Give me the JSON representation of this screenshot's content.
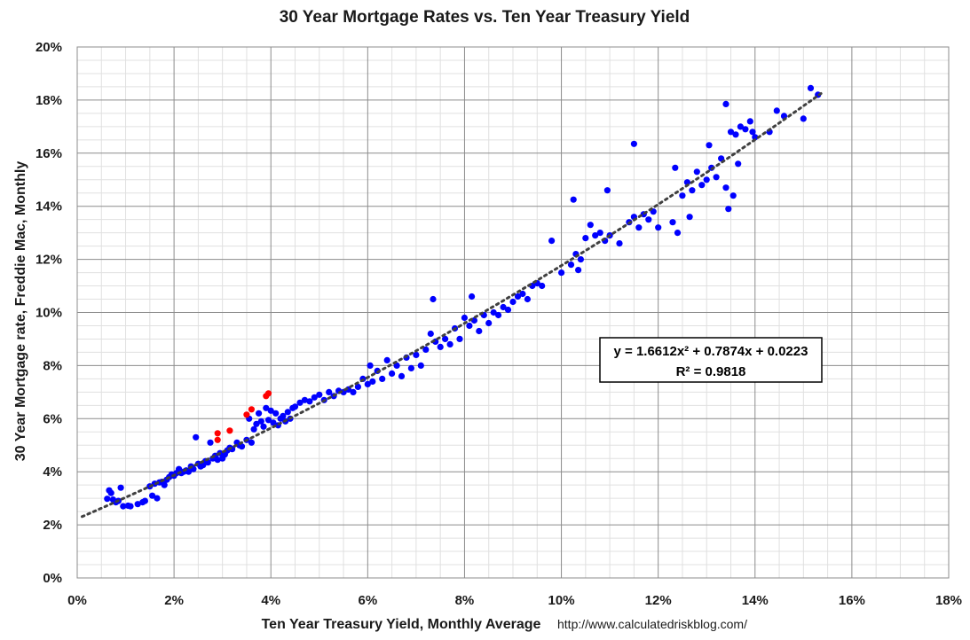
{
  "chart_data": {
    "type": "scatter",
    "title": "30 Year Mortgage Rates vs. Ten Year Treasury Yield",
    "xlabel": "Ten Year Treasury Yield, Monthly Average",
    "ylabel": "30 Year Mortgage rate, Freddie Mac, Monthly",
    "source": "http://www.calculatedriskblog.com/",
    "xlim": [
      0,
      18
    ],
    "ylim": [
      0,
      20
    ],
    "x_ticks": [
      "0%",
      "2%",
      "4%",
      "6%",
      "8%",
      "10%",
      "12%",
      "14%",
      "16%",
      "18%"
    ],
    "y_ticks": [
      "0%",
      "2%",
      "4%",
      "6%",
      "8%",
      "10%",
      "12%",
      "14%",
      "16%",
      "18%",
      "20%"
    ],
    "grid": true,
    "colors": {
      "main": "#0000ff",
      "highlight": "#ff0000",
      "trend": "#404040"
    },
    "trendline": {
      "type": "polynomial",
      "coefficients": [
        1.6612,
        0.7874,
        0.0223
      ],
      "equation": "y = 1.6612x² + 0.7874x + 0.0223",
      "r_squared": "R² = 0.9818",
      "x_range": [
        0.1,
        15.4
      ]
    },
    "series": [
      {
        "color": "#0000ff",
        "points": [
          [
            0.62,
            2.98
          ],
          [
            0.66,
            3.3
          ],
          [
            0.7,
            3.2
          ],
          [
            0.74,
            2.95
          ],
          [
            0.8,
            2.85
          ],
          [
            0.85,
            2.9
          ],
          [
            0.9,
            3.4
          ],
          [
            0.95,
            2.7
          ],
          [
            1.05,
            2.72
          ],
          [
            1.1,
            2.7
          ],
          [
            1.25,
            2.78
          ],
          [
            1.35,
            2.85
          ],
          [
            1.4,
            2.9
          ],
          [
            1.5,
            3.45
          ],
          [
            1.55,
            3.1
          ],
          [
            1.6,
            3.55
          ],
          [
            1.65,
            3.0
          ],
          [
            1.7,
            3.6
          ],
          [
            1.75,
            3.62
          ],
          [
            1.8,
            3.5
          ],
          [
            1.85,
            3.7
          ],
          [
            1.9,
            3.8
          ],
          [
            1.95,
            3.9
          ],
          [
            2.0,
            3.85
          ],
          [
            2.05,
            3.95
          ],
          [
            2.1,
            4.1
          ],
          [
            2.15,
            3.95
          ],
          [
            2.2,
            4.0
          ],
          [
            2.25,
            4.05
          ],
          [
            2.3,
            4.0
          ],
          [
            2.35,
            4.2
          ],
          [
            2.4,
            4.1
          ],
          [
            2.45,
            5.3
          ],
          [
            2.5,
            4.3
          ],
          [
            2.55,
            4.2
          ],
          [
            2.6,
            4.25
          ],
          [
            2.65,
            4.4
          ],
          [
            2.7,
            4.35
          ],
          [
            2.75,
            5.1
          ],
          [
            2.8,
            4.5
          ],
          [
            2.85,
            4.6
          ],
          [
            2.9,
            4.45
          ],
          [
            2.95,
            4.7
          ],
          [
            3.0,
            4.5
          ],
          [
            3.05,
            4.65
          ],
          [
            3.1,
            4.8
          ],
          [
            3.15,
            4.9
          ],
          [
            3.2,
            4.85
          ],
          [
            3.3,
            5.1
          ],
          [
            3.35,
            5.0
          ],
          [
            3.4,
            4.95
          ],
          [
            3.5,
            5.2
          ],
          [
            3.55,
            6.0
          ],
          [
            3.6,
            5.1
          ],
          [
            3.65,
            5.6
          ],
          [
            3.7,
            5.8
          ],
          [
            3.75,
            6.2
          ],
          [
            3.8,
            5.9
          ],
          [
            3.85,
            5.7
          ],
          [
            3.9,
            6.4
          ],
          [
            3.95,
            5.95
          ],
          [
            4.0,
            6.3
          ],
          [
            4.05,
            5.85
          ],
          [
            4.1,
            6.2
          ],
          [
            4.15,
            5.75
          ],
          [
            4.2,
            6.0
          ],
          [
            4.25,
            6.1
          ],
          [
            4.3,
            5.9
          ],
          [
            4.35,
            6.25
          ],
          [
            4.4,
            6.0
          ],
          [
            4.45,
            6.4
          ],
          [
            4.5,
            6.45
          ],
          [
            4.6,
            6.6
          ],
          [
            4.7,
            6.7
          ],
          [
            4.8,
            6.65
          ],
          [
            4.9,
            6.8
          ],
          [
            5.0,
            6.9
          ],
          [
            5.1,
            6.7
          ],
          [
            5.2,
            7.0
          ],
          [
            5.3,
            6.85
          ],
          [
            5.4,
            7.05
          ],
          [
            5.5,
            7.0
          ],
          [
            5.6,
            7.1
          ],
          [
            5.7,
            7.0
          ],
          [
            5.8,
            7.2
          ],
          [
            5.9,
            7.5
          ],
          [
            6.0,
            7.3
          ],
          [
            6.05,
            8.0
          ],
          [
            6.1,
            7.4
          ],
          [
            6.2,
            7.8
          ],
          [
            6.3,
            7.5
          ],
          [
            6.4,
            8.2
          ],
          [
            6.5,
            7.7
          ],
          [
            6.6,
            8.0
          ],
          [
            6.7,
            7.6
          ],
          [
            6.8,
            8.3
          ],
          [
            6.9,
            7.9
          ],
          [
            7.0,
            8.4
          ],
          [
            7.1,
            8.0
          ],
          [
            7.2,
            8.6
          ],
          [
            7.3,
            9.2
          ],
          [
            7.35,
            10.5
          ],
          [
            7.4,
            8.9
          ],
          [
            7.5,
            8.7
          ],
          [
            7.6,
            9.0
          ],
          [
            7.7,
            8.8
          ],
          [
            7.8,
            9.4
          ],
          [
            7.9,
            9.0
          ],
          [
            8.0,
            9.8
          ],
          [
            8.1,
            9.5
          ],
          [
            8.15,
            10.6
          ],
          [
            8.2,
            9.7
          ],
          [
            8.3,
            9.3
          ],
          [
            8.4,
            9.9
          ],
          [
            8.5,
            9.6
          ],
          [
            8.6,
            10.0
          ],
          [
            8.7,
            9.9
          ],
          [
            8.8,
            10.2
          ],
          [
            8.9,
            10.1
          ],
          [
            9.0,
            10.4
          ],
          [
            9.1,
            10.6
          ],
          [
            9.2,
            10.7
          ],
          [
            9.3,
            10.5
          ],
          [
            9.4,
            11.0
          ],
          [
            9.5,
            11.1
          ],
          [
            9.6,
            11.0
          ],
          [
            9.8,
            12.7
          ],
          [
            10.0,
            11.5
          ],
          [
            10.2,
            11.8
          ],
          [
            10.25,
            14.25
          ],
          [
            10.3,
            12.2
          ],
          [
            10.35,
            11.6
          ],
          [
            10.4,
            12.0
          ],
          [
            10.5,
            12.8
          ],
          [
            10.6,
            13.3
          ],
          [
            10.7,
            12.9
          ],
          [
            10.8,
            13.0
          ],
          [
            10.9,
            12.7
          ],
          [
            10.95,
            14.6
          ],
          [
            11.0,
            12.9
          ],
          [
            11.2,
            12.6
          ],
          [
            11.4,
            13.4
          ],
          [
            11.5,
            13.6
          ],
          [
            11.5,
            16.35
          ],
          [
            11.6,
            13.2
          ],
          [
            11.7,
            13.7
          ],
          [
            11.8,
            13.5
          ],
          [
            11.9,
            13.8
          ],
          [
            12.0,
            13.2
          ],
          [
            12.3,
            13.4
          ],
          [
            12.35,
            15.45
          ],
          [
            12.4,
            13.0
          ],
          [
            12.5,
            14.4
          ],
          [
            12.6,
            14.9
          ],
          [
            12.65,
            13.6
          ],
          [
            12.7,
            14.6
          ],
          [
            12.8,
            15.3
          ],
          [
            12.9,
            14.8
          ],
          [
            13.0,
            15.0
          ],
          [
            13.05,
            16.3
          ],
          [
            13.1,
            15.45
          ],
          [
            13.2,
            15.1
          ],
          [
            13.3,
            15.8
          ],
          [
            13.4,
            14.7
          ],
          [
            13.45,
            13.9
          ],
          [
            13.5,
            16.8
          ],
          [
            13.55,
            14.4
          ],
          [
            13.6,
            16.7
          ],
          [
            13.65,
            15.6
          ],
          [
            13.7,
            17.0
          ],
          [
            13.8,
            16.9
          ],
          [
            13.9,
            17.2
          ],
          [
            13.95,
            16.8
          ],
          [
            14.0,
            16.6
          ],
          [
            14.3,
            16.8
          ],
          [
            14.45,
            17.6
          ],
          [
            14.6,
            17.4
          ],
          [
            15.0,
            17.3
          ],
          [
            15.15,
            18.45
          ],
          [
            15.3,
            18.2
          ],
          [
            13.4,
            17.85
          ]
        ]
      },
      {
        "color": "#ff0000",
        "points": [
          [
            2.9,
            5.2
          ],
          [
            2.9,
            5.45
          ],
          [
            3.15,
            5.55
          ],
          [
            3.5,
            6.15
          ],
          [
            3.6,
            6.35
          ],
          [
            3.9,
            6.85
          ],
          [
            3.95,
            6.95
          ]
        ]
      }
    ]
  }
}
